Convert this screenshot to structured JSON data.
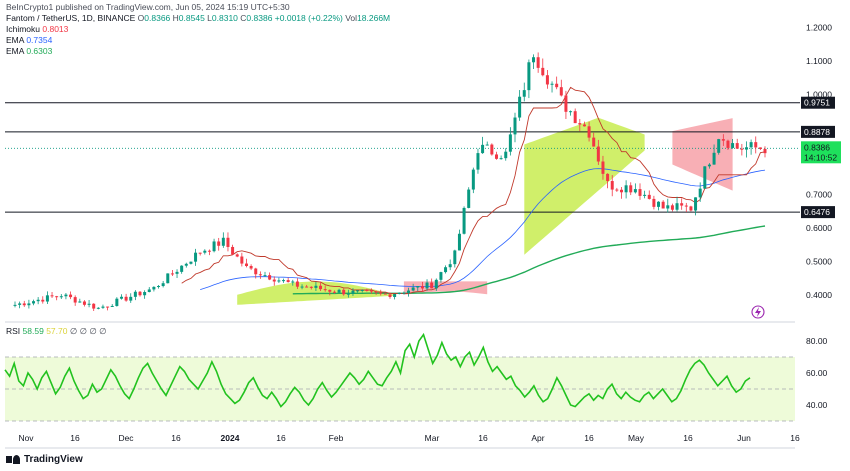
{
  "header": {
    "published": "BeInCrypto1 published on TradingView.com, Jun 05, 2024 15:19 UTC+5:30",
    "symbol": "Fantom / TetherUS, 1D, BINANCE",
    "ohlc": {
      "o_label": "O",
      "o": "0.8366",
      "h_label": "H",
      "h": "0.8545",
      "l_label": "L",
      "l": "0.8310",
      "c_label": "C",
      "c": "0.8386",
      "change": "+0.0018 (+0.22%)",
      "vol_label": "Vol",
      "vol": "18.266M"
    }
  },
  "indicators": [
    {
      "name": "Ichimoku",
      "value": "0.8013",
      "color": "#c0392b"
    },
    {
      "name": "EMA",
      "value": "0.7354",
      "color": "#2962ff"
    },
    {
      "name": "EMA",
      "value": "0.6303",
      "color": "#22ab58"
    }
  ],
  "rsi_legend": {
    "name": "RSI",
    "value": "58.59",
    "value2": "57.70",
    "extra": "∅ ∅ ∅ ∅"
  },
  "branding": {
    "footer": "TradingView"
  },
  "chart_data": {
    "type": "candlestick",
    "price_ticks": [
      "1.2000",
      "1.1000",
      "1.0000",
      "0.7000",
      "0.6000",
      "0.5000",
      "0.4000"
    ],
    "rsi_ticks": [
      "80.00",
      "60.00",
      "40.00"
    ],
    "x_ticks": [
      "Nov",
      "16",
      "Dec",
      "16",
      "2024",
      "16",
      "Feb",
      "Mar",
      "16",
      "Apr",
      "16",
      "May",
      "16",
      "Jun",
      "16"
    ],
    "horizontal_levels": [
      "0.9751",
      "0.8878",
      "0.6476"
    ],
    "current_price": {
      "value": "0.8386",
      "countdown": "14:10:52"
    },
    "colors": {
      "up": "#089981",
      "down": "#f23645",
      "ema_fast": "#2962ff",
      "ema_slow": "#22ab58",
      "kijun": "#c0392b",
      "cloud_bull": "#c8ec50",
      "cloud_bear": "#f7a1a8",
      "rsi": "#22c21f",
      "rsi_bg": "#eefbd9"
    },
    "rsi_series": [
      62,
      58,
      66,
      55,
      52,
      60,
      56,
      50,
      57,
      61,
      54,
      47,
      51,
      58,
      63,
      55,
      49,
      44,
      46,
      53,
      48,
      50,
      56,
      62,
      58,
      52,
      47,
      44,
      50,
      57,
      63,
      66,
      60,
      55,
      50,
      46,
      52,
      58,
      64,
      61,
      56,
      53,
      50,
      55,
      60,
      67,
      61,
      53,
      47,
      44,
      41,
      43,
      48,
      54,
      57,
      51,
      46,
      44,
      48,
      44,
      39,
      42,
      47,
      51,
      48,
      43,
      40,
      44,
      50,
      54,
      49,
      45,
      48,
      52,
      56,
      60,
      57,
      53,
      56,
      61,
      57,
      53,
      52,
      57,
      61,
      67,
      60,
      74,
      78,
      70,
      80,
      84,
      75,
      66,
      71,
      79,
      72,
      68,
      70,
      64,
      70,
      73,
      65,
      70,
      76,
      67,
      61,
      64,
      60,
      56,
      58,
      52,
      49,
      45,
      48,
      52,
      46,
      42,
      44,
      50,
      57,
      52,
      46,
      40,
      39,
      42,
      45,
      47,
      43,
      46,
      44,
      50,
      53,
      47,
      44,
      48,
      45,
      43,
      42,
      46,
      48,
      44,
      47,
      50,
      46,
      42,
      44,
      49,
      56,
      62,
      66,
      68,
      65,
      60,
      56,
      52,
      55,
      58,
      52,
      48,
      50,
      55,
      57
    ]
  }
}
